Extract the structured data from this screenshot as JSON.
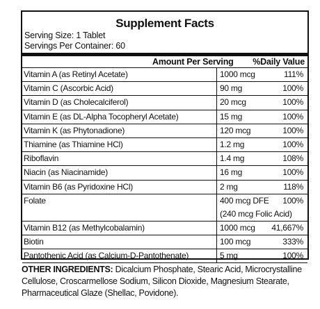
{
  "title": "Supplement Facts",
  "serving_size": "Serving Size: 1 Tablet",
  "servings_per_container": "Servings Per Container: 60",
  "table": {
    "header": {
      "amount": "Amount Per Serving",
      "dv": "%Daily Value"
    },
    "rows": [
      {
        "name": "Vitamin A (as Retinyl Acetate)",
        "amount": "1000 mcg",
        "dv": "111%"
      },
      {
        "name": "Vitamin C (Ascorbic Acid)",
        "amount": "90 mg",
        "dv": "100%"
      },
      {
        "name": "Vitamin D (as Cholecalciferol)",
        "amount": "20 mcg",
        "dv": "100%"
      },
      {
        "name": "Vitamin E (as DL-Alpha Tocopheryl Acetate)",
        "amount": "15 mg",
        "dv": "100%"
      },
      {
        "name": "Vitamin K (as Phytonadione)",
        "amount": "120 mcg",
        "dv": "100%"
      },
      {
        "name": "Thiamine (as Thiamine HCl)",
        "amount": "1.2 mg",
        "dv": "100%"
      },
      {
        "name": "Riboflavin",
        "amount": "1.4 mg",
        "dv": "108%"
      },
      {
        "name": "Niacin (as Niacinamide)",
        "amount": "16 mg",
        "dv": "100%"
      },
      {
        "name": "Vitamin B6 (as Pyridoxine HCl)",
        "amount": "2 mg",
        "dv": "118%"
      },
      {
        "name": "Folate",
        "amount": "400 mcg DFE",
        "dv": "100%",
        "note": "(240 mcg Folic Acid)"
      },
      {
        "name": "Vitamin B12 (as Methylcobalamin)",
        "amount": "1000 mcg",
        "dv": "41,667%"
      },
      {
        "name": "Biotin",
        "amount": "100 mcg",
        "dv": "333%"
      },
      {
        "name": "Pantothenic Acid (as Calcium-D-Pantothenate)",
        "amount": "5 mg",
        "dv": "100%"
      }
    ]
  },
  "other_ingredients": {
    "label": "OTHER INGREDIENTS:",
    "text": "Dicalcium Phosphate, Stearic Acid, Microcrystalline Cellulose, Croscarmellose Sodium, Silicon Dioxide, Magnesium Stearate, Pharmaceutical Glaze (Shellac, Povidone)."
  }
}
